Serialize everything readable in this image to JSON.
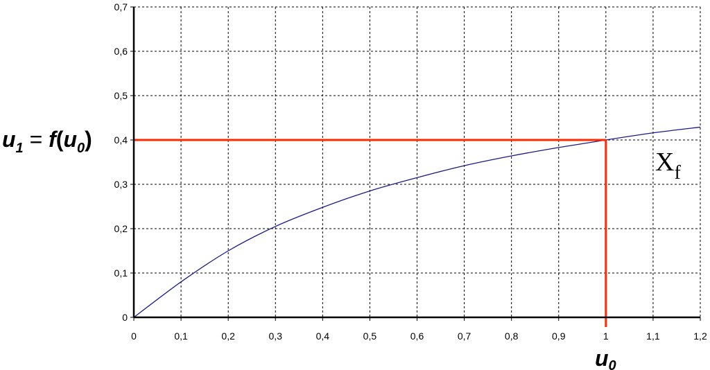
{
  "chart_data": {
    "type": "line",
    "xlabel_base": "u",
    "xlabel_sub": "0",
    "ylabel": {
      "u": "u",
      "sub1": "1",
      "eq": " = ",
      "f": "f",
      "open": "(",
      "u2": "u",
      "sub0": "0",
      "close": ")"
    },
    "xlim": [
      0,
      1.2
    ],
    "ylim": [
      0,
      0.7
    ],
    "x_ticks": [
      "0",
      "0,1",
      "0,2",
      "0,3",
      "0,4",
      "0,5",
      "0,6",
      "0,7",
      "0,8",
      "0,9",
      "1",
      "1,1",
      "1,2"
    ],
    "y_ticks": [
      "0",
      "0,1",
      "0,2",
      "0,3",
      "0,4",
      "0,5",
      "0,6",
      "0,7"
    ],
    "grid": true,
    "series": [
      {
        "color": "#1a1a8c",
        "x": [
          0,
          0.1,
          0.2,
          0.3,
          0.4,
          0.5,
          0.6,
          0.7,
          0.8,
          0.9,
          1.0,
          1.1,
          1.2
        ],
        "y": [
          0,
          0.08,
          0.15,
          0.205,
          0.248,
          0.285,
          0.315,
          0.342,
          0.364,
          0.383,
          0.4,
          0.416,
          0.429
        ]
      }
    ],
    "reference": {
      "color": "#ff2a00",
      "x": 1.0,
      "y": 0.4
    },
    "annotation": {
      "base": "X",
      "sub": "f",
      "x": 1.05,
      "y": 0.34
    }
  }
}
